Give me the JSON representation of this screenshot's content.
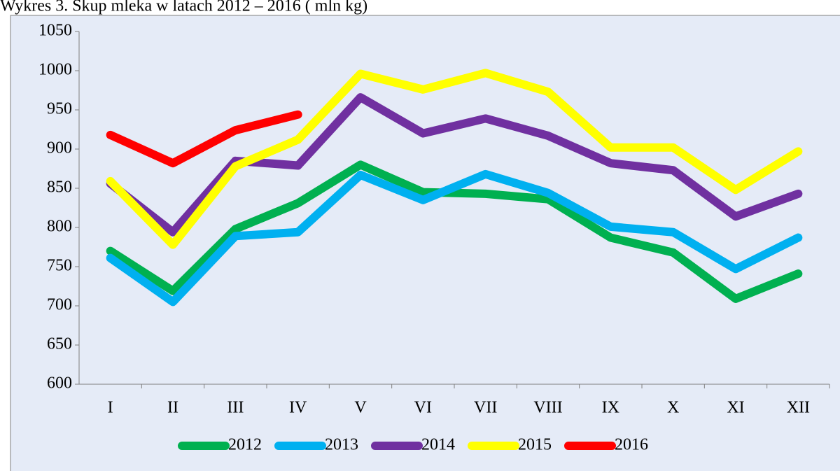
{
  "chart_data": {
    "type": "line",
    "title": "Wykres 3. Skup mleka w latach 2012 – 2016 ( mln kg)",
    "categories": [
      "I",
      "II",
      "III",
      "IV",
      "V",
      "VI",
      "VII",
      "VIII",
      "IX",
      "X",
      "XI",
      "XII"
    ],
    "series": [
      {
        "name": "2012",
        "color": "#00b050",
        "values": [
          770,
          719,
          798,
          831,
          880,
          845,
          843,
          836,
          787,
          768,
          709,
          741
        ]
      },
      {
        "name": "2013",
        "color": "#00b0f0",
        "values": [
          761,
          705,
          789,
          794,
          867,
          835,
          868,
          844,
          801,
          794,
          747,
          787
        ]
      },
      {
        "name": "2014",
        "color": "#7030a0",
        "values": [
          856,
          794,
          885,
          879,
          966,
          920,
          939,
          917,
          882,
          873,
          814,
          843
        ]
      },
      {
        "name": "2015",
        "color": "#ffff00",
        "values": [
          859,
          778,
          878,
          912,
          996,
          976,
          997,
          973,
          902,
          902,
          848,
          897
        ]
      },
      {
        "name": "2016",
        "color": "#ff0000",
        "values": [
          918,
          882,
          924,
          944,
          null,
          null,
          null,
          null,
          null,
          null,
          null,
          null
        ]
      }
    ],
    "ylim": [
      600,
      1050
    ],
    "yticks": [
      600,
      650,
      700,
      750,
      800,
      850,
      900,
      950,
      1000,
      1050
    ],
    "grid": false,
    "legend": "bottom"
  }
}
